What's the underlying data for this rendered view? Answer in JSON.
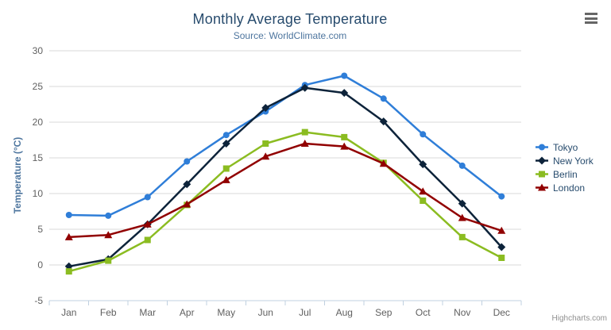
{
  "header": {
    "title": "Monthly Average Temperature",
    "subtitle": "Source: WorldClimate.com"
  },
  "toolbar": {
    "context_menu_icon": "hamburger-icon"
  },
  "credits": {
    "label": "Highcharts.com"
  },
  "chart_data": {
    "type": "line",
    "title": "Monthly Average Temperature",
    "subtitle": "Source: WorldClimate.com",
    "categories": [
      "Jan",
      "Feb",
      "Mar",
      "Apr",
      "May",
      "Jun",
      "Jul",
      "Aug",
      "Sep",
      "Oct",
      "Nov",
      "Dec"
    ],
    "xlabel": "",
    "ylabel": "Temperature (°C)",
    "ylim": [
      -5,
      30
    ],
    "yticks": [
      -5,
      0,
      5,
      10,
      15,
      20,
      25,
      30
    ],
    "grid": true,
    "legend_position": "right",
    "series": [
      {
        "name": "Tokyo",
        "color": "#2f7ed8",
        "marker": "circle",
        "values": [
          7.0,
          6.9,
          9.5,
          14.5,
          18.2,
          21.5,
          25.2,
          26.5,
          23.3,
          18.3,
          13.9,
          9.6
        ]
      },
      {
        "name": "New York",
        "color": "#0d233a",
        "marker": "diamond",
        "values": [
          -0.2,
          0.8,
          5.7,
          11.3,
          17.0,
          22.0,
          24.8,
          24.1,
          20.1,
          14.1,
          8.6,
          2.5
        ]
      },
      {
        "name": "Berlin",
        "color": "#8bbc21",
        "marker": "square",
        "values": [
          -0.9,
          0.6,
          3.5,
          8.4,
          13.5,
          17.0,
          18.6,
          17.9,
          14.3,
          9.0,
          3.9,
          1.0
        ]
      },
      {
        "name": "London",
        "color": "#910000",
        "marker": "triangle",
        "values": [
          3.9,
          4.2,
          5.7,
          8.5,
          11.9,
          15.2,
          17.0,
          16.6,
          14.2,
          10.3,
          6.6,
          4.8
        ]
      }
    ],
    "colors": {
      "title": "#274b6d",
      "subtitle": "#4d759e",
      "axis_title": "#4d759e",
      "axis_label": "#606060",
      "gridline": "#d8d8d8",
      "axis_line": "#c0d0e0",
      "legend_text": "#274b6d",
      "credits": "#909090",
      "menu_icon": "#666666"
    }
  }
}
